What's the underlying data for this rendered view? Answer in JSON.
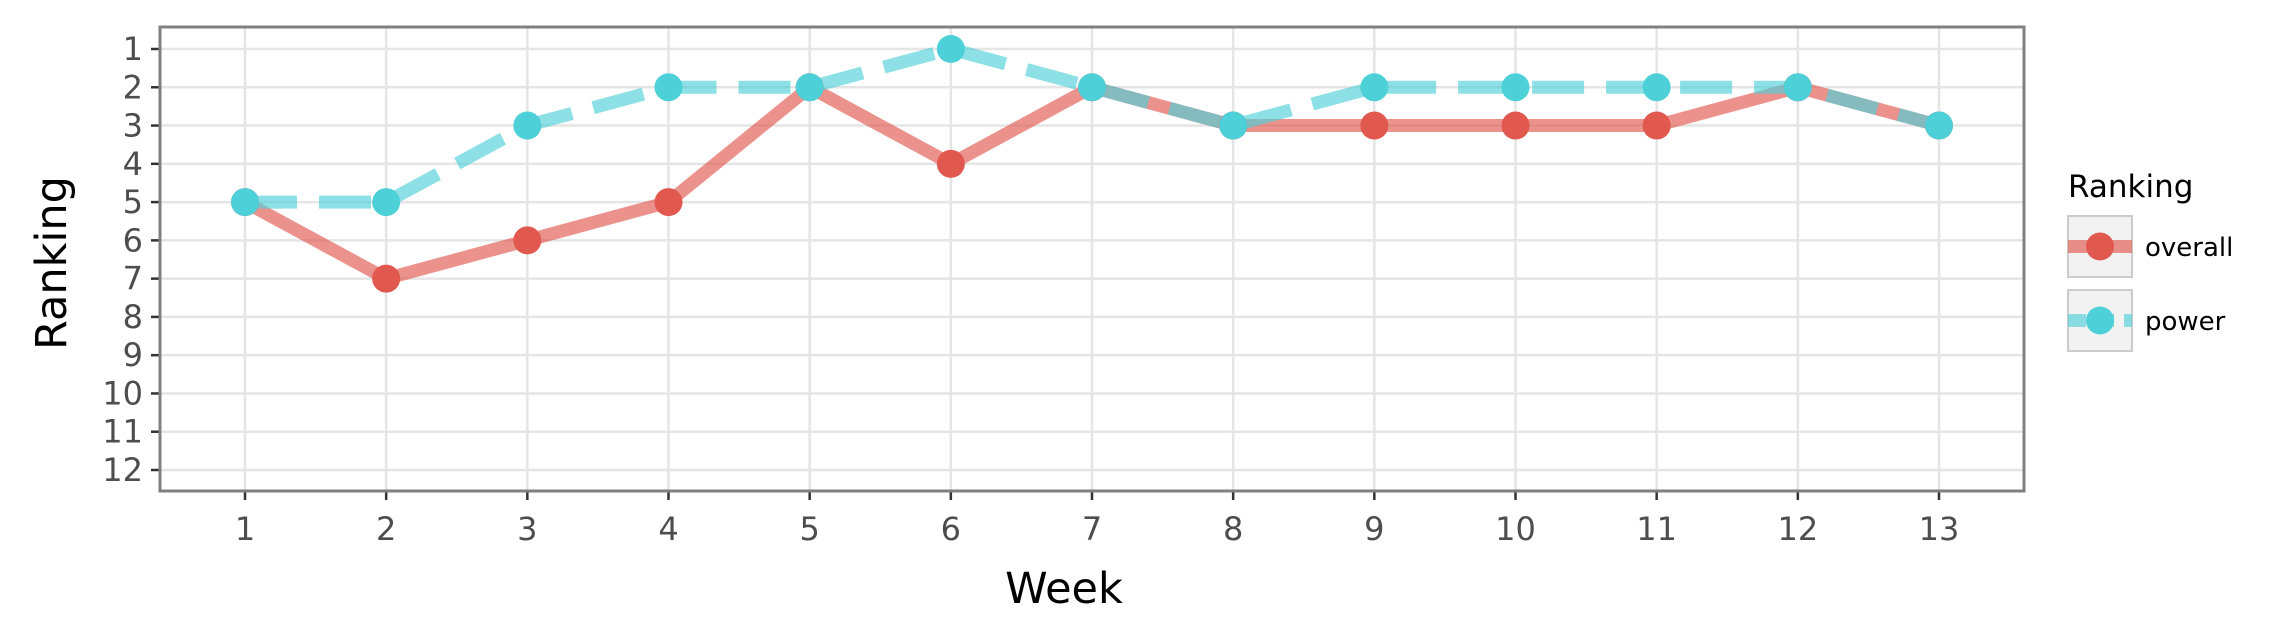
{
  "chart_data": {
    "type": "line",
    "xlabel": "Week",
    "ylabel": "Ranking",
    "x": [
      1,
      2,
      3,
      4,
      5,
      6,
      7,
      8,
      9,
      10,
      11,
      12,
      13
    ],
    "x_ticks": [
      "1",
      "2",
      "3",
      "4",
      "5",
      "6",
      "7",
      "8",
      "9",
      "10",
      "11",
      "12",
      "13"
    ],
    "y_ticks": [
      "1",
      "2",
      "3",
      "4",
      "5",
      "6",
      "7",
      "8",
      "9",
      "10",
      "11",
      "12"
    ],
    "ylim": [
      1,
      12
    ],
    "y_reversed": true,
    "grid": true,
    "legend": {
      "title": "Ranking",
      "placement": "right"
    },
    "series": [
      {
        "name": "overall",
        "values": [
          5,
          7,
          6,
          5,
          2,
          4,
          2,
          3,
          3,
          3,
          3,
          2,
          3
        ],
        "color": "#e0584e",
        "line_style": "solid"
      },
      {
        "name": "power",
        "values": [
          5,
          5,
          3,
          2,
          2,
          1,
          2,
          3,
          2,
          2,
          2,
          2,
          3
        ],
        "color": "#4ed0d8",
        "line_style": "dashed"
      }
    ],
    "colors": {
      "panel_border": "#808080",
      "grid": "#e5e5e5",
      "tick_text": "#4d4d4d",
      "legend_key_bg": "#f2f2f2",
      "legend_key_border": "#cccccc"
    }
  }
}
